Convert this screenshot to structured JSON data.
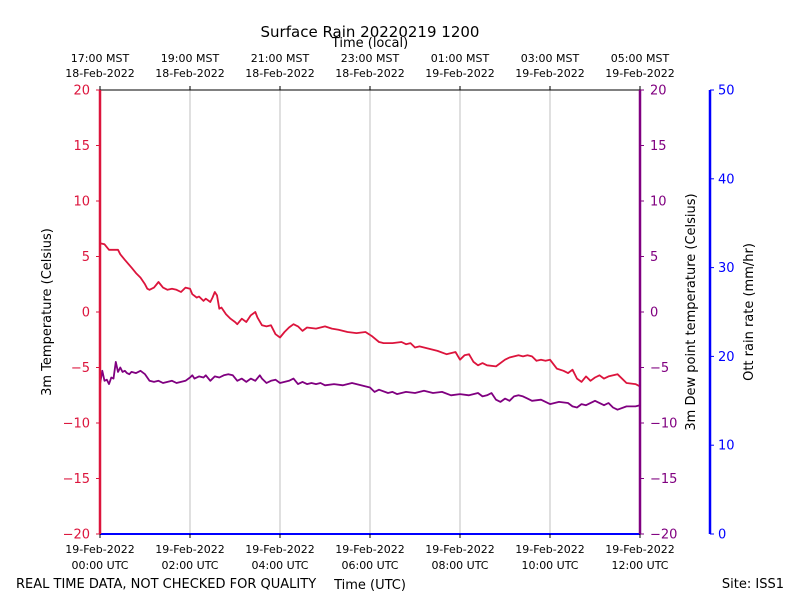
{
  "chart_data": {
    "type": "line",
    "title": "Surface Rain 20220219 1200",
    "top_axis_label": "Time (local)",
    "xlabel": "Time (UTC)",
    "ylabel_left": "3m Temperature (Celsius)",
    "ylabel_right": "3m Dew point temperature (Celsius)",
    "ylabel_far_right": "Ott rain rate (mm/hr)",
    "footer_left": "REAL TIME DATA, NOT CHECKED FOR QUALITY",
    "footer_right": "Site: ISS1",
    "x_unit": "hours since 2022-02-19 00:00 UTC",
    "xlim": [
      0,
      12
    ],
    "ylim": [
      -20,
      20
    ],
    "ylim_rain": [
      0,
      50
    ],
    "grid": "vertical only",
    "y_ticks": [
      "20",
      "15",
      "10",
      "5",
      "0",
      "−5",
      "−10",
      "−15",
      "−20"
    ],
    "y_tick_values": [
      20,
      15,
      10,
      5,
      0,
      -5,
      -10,
      -15,
      -20
    ],
    "rain_ticks": [
      "50",
      "40",
      "30",
      "20",
      "10",
      "0"
    ],
    "rain_tick_values": [
      50,
      40,
      30,
      20,
      10,
      0
    ],
    "x_ticks_utc": [
      {
        "x": 0,
        "date": "19-Feb-2022",
        "time": "00:00 UTC"
      },
      {
        "x": 2,
        "date": "19-Feb-2022",
        "time": "02:00 UTC"
      },
      {
        "x": 4,
        "date": "19-Feb-2022",
        "time": "04:00 UTC"
      },
      {
        "x": 6,
        "date": "19-Feb-2022",
        "time": "06:00 UTC"
      },
      {
        "x": 8,
        "date": "19-Feb-2022",
        "time": "08:00 UTC"
      },
      {
        "x": 10,
        "date": "19-Feb-2022",
        "time": "10:00 UTC"
      },
      {
        "x": 12,
        "date": "19-Feb-2022",
        "time": "12:00 UTC"
      }
    ],
    "x_ticks_local": [
      {
        "x": 0,
        "time": "17:00 MST",
        "date": "18-Feb-2022"
      },
      {
        "x": 2,
        "time": "19:00 MST",
        "date": "18-Feb-2022"
      },
      {
        "x": 4,
        "time": "21:00 MST",
        "date": "18-Feb-2022"
      },
      {
        "x": 6,
        "time": "23:00 MST",
        "date": "18-Feb-2022"
      },
      {
        "x": 8,
        "time": "01:00 MST",
        "date": "19-Feb-2022"
      },
      {
        "x": 10,
        "time": "03:00 MST",
        "date": "19-Feb-2022"
      },
      {
        "x": 12,
        "time": "05:00 MST",
        "date": "19-Feb-2022"
      }
    ],
    "colors": {
      "temperature": "#dc143c",
      "dewpoint": "#800080",
      "rain": "#0000ff",
      "grid": "#b0b0b0"
    },
    "series": [
      {
        "name": "3m Temperature",
        "axis": "left",
        "x": [
          0,
          0.1,
          0.2,
          0.4,
          0.45,
          0.55,
          0.7,
          0.8,
          0.9,
          1.0,
          1.05,
          1.1,
          1.2,
          1.3,
          1.4,
          1.5,
          1.6,
          1.7,
          1.8,
          1.9,
          2.0,
          2.05,
          2.15,
          2.2,
          2.3,
          2.35,
          2.45,
          2.5,
          2.55,
          2.6,
          2.65,
          2.7,
          2.8,
          2.9,
          3.0,
          3.05,
          3.15,
          3.25,
          3.35,
          3.45,
          3.5,
          3.6,
          3.7,
          3.8,
          3.9,
          4.0,
          4.1,
          4.2,
          4.3,
          4.4,
          4.5,
          4.6,
          4.8,
          5.0,
          5.15,
          5.3,
          5.5,
          5.7,
          5.9,
          6.05,
          6.2,
          6.3,
          6.5,
          6.7,
          6.8,
          6.9,
          7.0,
          7.1,
          7.3,
          7.5,
          7.7,
          7.9,
          8.0,
          8.1,
          8.2,
          8.3,
          8.4,
          8.5,
          8.6,
          8.8,
          9.0,
          9.1,
          9.2,
          9.3,
          9.4,
          9.5,
          9.6,
          9.7,
          9.8,
          9.9,
          10.0,
          10.15,
          10.3,
          10.4,
          10.5,
          10.6,
          10.7,
          10.8,
          10.9,
          11.0,
          11.1,
          11.2,
          11.3,
          11.5,
          11.7,
          11.9,
          12.0
        ],
        "y": [
          6.2,
          6.1,
          5.6,
          5.6,
          5.2,
          4.7,
          4.0,
          3.5,
          3.1,
          2.5,
          2.1,
          2.0,
          2.2,
          2.7,
          2.2,
          2.0,
          2.1,
          2.0,
          1.8,
          2.2,
          2.1,
          1.6,
          1.3,
          1.4,
          1.0,
          1.2,
          0.9,
          1.3,
          1.8,
          1.5,
          0.3,
          0.4,
          -0.2,
          -0.6,
          -0.9,
          -1.1,
          -0.6,
          -0.9,
          -0.3,
          0.0,
          -0.5,
          -1.2,
          -1.3,
          -1.2,
          -2.0,
          -2.3,
          -1.8,
          -1.4,
          -1.1,
          -1.3,
          -1.7,
          -1.4,
          -1.5,
          -1.3,
          -1.5,
          -1.6,
          -1.8,
          -1.9,
          -1.8,
          -2.2,
          -2.7,
          -2.8,
          -2.8,
          -2.7,
          -2.9,
          -2.8,
          -3.2,
          -3.1,
          -3.3,
          -3.5,
          -3.8,
          -3.6,
          -4.3,
          -3.9,
          -3.8,
          -4.5,
          -4.8,
          -4.6,
          -4.8,
          -4.9,
          -4.3,
          -4.1,
          -4.0,
          -3.9,
          -4.0,
          -3.9,
          -4.0,
          -4.4,
          -4.3,
          -4.4,
          -4.3,
          -5.1,
          -5.3,
          -5.5,
          -5.2,
          -6.0,
          -6.3,
          -5.8,
          -6.2,
          -5.9,
          -5.7,
          -6.0,
          -5.8,
          -5.6,
          -6.4,
          -6.5,
          -6.7
        ]
      },
      {
        "name": "3m Dew point temperature",
        "axis": "right",
        "x": [
          0,
          0.05,
          0.1,
          0.15,
          0.2,
          0.25,
          0.3,
          0.35,
          0.4,
          0.45,
          0.5,
          0.55,
          0.6,
          0.65,
          0.7,
          0.8,
          0.9,
          1.0,
          1.1,
          1.2,
          1.3,
          1.4,
          1.5,
          1.6,
          1.7,
          1.8,
          1.9,
          2.0,
          2.05,
          2.1,
          2.2,
          2.3,
          2.35,
          2.45,
          2.55,
          2.65,
          2.75,
          2.85,
          2.95,
          3.05,
          3.15,
          3.25,
          3.35,
          3.45,
          3.55,
          3.6,
          3.7,
          3.8,
          3.9,
          4.0,
          4.1,
          4.2,
          4.3,
          4.4,
          4.5,
          4.6,
          4.7,
          4.8,
          4.9,
          5.0,
          5.2,
          5.4,
          5.6,
          5.8,
          6.0,
          6.1,
          6.2,
          6.4,
          6.5,
          6.6,
          6.8,
          7.0,
          7.2,
          7.4,
          7.6,
          7.8,
          8.0,
          8.2,
          8.4,
          8.5,
          8.6,
          8.7,
          8.8,
          8.9,
          9.0,
          9.1,
          9.2,
          9.3,
          9.4,
          9.5,
          9.6,
          9.8,
          10.0,
          10.2,
          10.4,
          10.5,
          10.6,
          10.7,
          10.8,
          11.0,
          11.2,
          11.3,
          11.4,
          11.5,
          11.7,
          11.9,
          12.0
        ],
        "y": [
          -6.5,
          -5.3,
          -6.2,
          -6.1,
          -6.5,
          -5.9,
          -6.0,
          -4.5,
          -5.4,
          -5.0,
          -5.4,
          -5.3,
          -5.5,
          -5.6,
          -5.4,
          -5.5,
          -5.3,
          -5.6,
          -6.2,
          -6.3,
          -6.2,
          -6.4,
          -6.3,
          -6.2,
          -6.4,
          -6.3,
          -6.2,
          -5.9,
          -5.7,
          -6.0,
          -5.8,
          -5.9,
          -5.7,
          -6.2,
          -5.8,
          -5.9,
          -5.7,
          -5.6,
          -5.7,
          -6.2,
          -6.0,
          -6.3,
          -6.0,
          -6.2,
          -5.7,
          -6.0,
          -6.4,
          -6.2,
          -6.1,
          -6.4,
          -6.3,
          -6.2,
          -6.0,
          -6.5,
          -6.3,
          -6.5,
          -6.4,
          -6.5,
          -6.4,
          -6.6,
          -6.5,
          -6.6,
          -6.4,
          -6.6,
          -6.8,
          -7.2,
          -7.0,
          -7.3,
          -7.2,
          -7.4,
          -7.2,
          -7.3,
          -7.1,
          -7.3,
          -7.2,
          -7.5,
          -7.4,
          -7.5,
          -7.3,
          -7.6,
          -7.5,
          -7.3,
          -7.9,
          -8.1,
          -7.8,
          -8.0,
          -7.6,
          -7.5,
          -7.6,
          -7.8,
          -8.0,
          -7.9,
          -8.3,
          -8.1,
          -8.2,
          -8.5,
          -8.6,
          -8.3,
          -8.4,
          -8.0,
          -8.4,
          -8.2,
          -8.6,
          -8.8,
          -8.5,
          -8.5,
          -8.4
        ]
      }
    ]
  }
}
